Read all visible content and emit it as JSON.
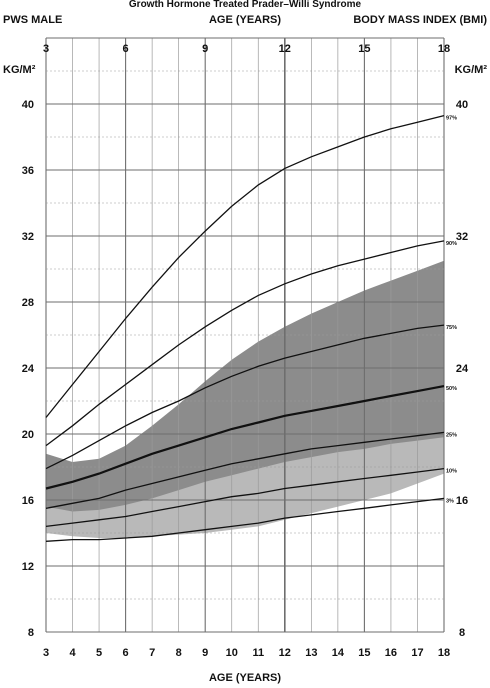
{
  "chart_data": {
    "type": "line",
    "title": "Growth Hormone Treated Prader–Willi Syndrome",
    "header_left": "PWS MALE",
    "header_center": "AGE (YEARS)",
    "header_right": "BODY MASS INDEX (BMI)",
    "xlabel": "AGE (YEARS)",
    "ylabel_left": "KG/M²",
    "ylabel_right": "KG/M²",
    "xlim": [
      3,
      18
    ],
    "ylim": [
      8,
      44
    ],
    "grid": true,
    "top_ticks": [
      "3",
      "6",
      "9",
      "12",
      "15",
      "18"
    ],
    "bottom_ticks": [
      "3",
      "4",
      "5",
      "6",
      "7",
      "8",
      "9",
      "10",
      "11",
      "12",
      "13",
      "14",
      "15",
      "16",
      "17",
      "18"
    ],
    "left_ticks": [
      "8",
      "12",
      "16",
      "20",
      "24",
      "28",
      "32",
      "36",
      "40"
    ],
    "right_ticks": [
      "8",
      "16",
      "24",
      "32",
      "40"
    ],
    "x": [
      3,
      4,
      5,
      6,
      7,
      8,
      9,
      10,
      11,
      12,
      13,
      14,
      15,
      16,
      17,
      18
    ],
    "series": [
      {
        "name": "97%",
        "values": [
          21.0,
          23.0,
          25.0,
          27.0,
          28.9,
          30.7,
          32.3,
          33.8,
          35.1,
          36.1,
          36.8,
          37.4,
          38.0,
          38.5,
          38.9,
          39.3
        ]
      },
      {
        "name": "90%",
        "values": [
          19.3,
          20.5,
          21.8,
          23.0,
          24.2,
          25.4,
          26.5,
          27.5,
          28.4,
          29.1,
          29.7,
          30.2,
          30.6,
          31.0,
          31.4,
          31.7
        ]
      },
      {
        "name": "75%",
        "values": [
          17.9,
          18.7,
          19.6,
          20.5,
          21.3,
          22.0,
          22.8,
          23.5,
          24.1,
          24.6,
          25.0,
          25.4,
          25.8,
          26.1,
          26.4,
          26.6
        ]
      },
      {
        "name": "50%",
        "values": [
          16.7,
          17.1,
          17.6,
          18.2,
          18.8,
          19.3,
          19.8,
          20.3,
          20.7,
          21.1,
          21.4,
          21.7,
          22.0,
          22.3,
          22.6,
          22.9
        ]
      },
      {
        "name": "25%",
        "values": [
          15.5,
          15.8,
          16.1,
          16.6,
          17.0,
          17.4,
          17.8,
          18.2,
          18.5,
          18.8,
          19.1,
          19.3,
          19.5,
          19.7,
          19.9,
          20.1
        ]
      },
      {
        "name": "10%",
        "values": [
          14.4,
          14.6,
          14.8,
          15.0,
          15.3,
          15.6,
          15.9,
          16.2,
          16.4,
          16.7,
          16.9,
          17.1,
          17.3,
          17.5,
          17.7,
          17.9
        ]
      },
      {
        "name": "3%",
        "values": [
          13.5,
          13.6,
          13.6,
          13.7,
          13.8,
          14.0,
          14.2,
          14.4,
          14.6,
          14.9,
          15.1,
          15.3,
          15.5,
          15.7,
          15.9,
          16.1
        ]
      }
    ],
    "bands": [
      {
        "shade": "#b9b9b9",
        "x": [
          3,
          4,
          5,
          6,
          7,
          8,
          9,
          10,
          11,
          12,
          13,
          14,
          15,
          16,
          17,
          18
        ],
        "upper": [
          16.6,
          17.1,
          17.8,
          18.5,
          19.1,
          19.8,
          20.3,
          20.8,
          21.1,
          21.3,
          21.4,
          21.4,
          21.3,
          21.2,
          21.3,
          21.6
        ],
        "lower": [
          14.0,
          13.8,
          13.7,
          13.7,
          13.8,
          13.9,
          14.0,
          14.2,
          14.4,
          14.8,
          15.2,
          15.6,
          16.0,
          16.4,
          17.0,
          17.6
        ]
      },
      {
        "shade": "#8c8c8c",
        "x": [
          3,
          4,
          5,
          6,
          7,
          8,
          9,
          10,
          11,
          12,
          13,
          14,
          15,
          16,
          17,
          18
        ],
        "upper": [
          18.8,
          18.3,
          18.5,
          19.3,
          20.5,
          21.8,
          23.2,
          24.5,
          25.6,
          26.5,
          27.3,
          28.0,
          28.7,
          29.3,
          29.9,
          30.5
        ],
        "lower": [
          15.6,
          15.3,
          15.4,
          15.7,
          16.1,
          16.6,
          17.1,
          17.5,
          17.9,
          18.3,
          18.6,
          18.9,
          19.1,
          19.4,
          19.6,
          19.8
        ]
      }
    ],
    "colors": {
      "line": "#111111",
      "grid": "#9a9a9a",
      "grid_major": "#6e6e6e"
    }
  }
}
